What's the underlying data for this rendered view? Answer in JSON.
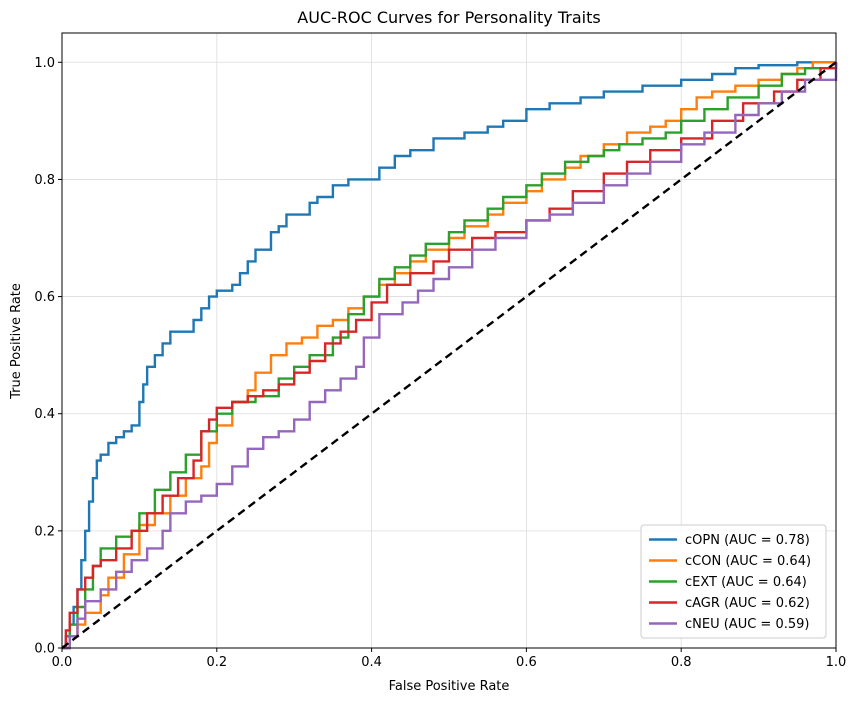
{
  "chart_data": {
    "type": "line",
    "title": "AUC-ROC Curves for Personality Traits",
    "xlabel": "False Positive Rate",
    "ylabel": "True Positive Rate",
    "xlim": [
      0.0,
      1.0
    ],
    "ylim": [
      0.0,
      1.05
    ],
    "xticks": [
      "0.0",
      "0.2",
      "0.4",
      "0.6",
      "0.8",
      "1.0"
    ],
    "yticks": [
      "0.0",
      "0.2",
      "0.4",
      "0.6",
      "0.8",
      "1.0"
    ],
    "grid": true,
    "legend_position": "lower right",
    "diagonal": {
      "x": [
        0,
        1
      ],
      "y": [
        0,
        1
      ],
      "style": "dashed",
      "color": "#000000"
    },
    "series": [
      {
        "name": "cOPN (AUC = 0.78)",
        "color": "#1f77b4",
        "x": [
          0,
          0.005,
          0.01,
          0.015,
          0.02,
          0.025,
          0.03,
          0.035,
          0.04,
          0.045,
          0.05,
          0.06,
          0.07,
          0.08,
          0.09,
          0.1,
          0.105,
          0.11,
          0.12,
          0.13,
          0.14,
          0.15,
          0.17,
          0.18,
          0.19,
          0.2,
          0.22,
          0.23,
          0.24,
          0.25,
          0.27,
          0.28,
          0.29,
          0.3,
          0.32,
          0.33,
          0.35,
          0.37,
          0.4,
          0.41,
          0.43,
          0.45,
          0.48,
          0.5,
          0.52,
          0.55,
          0.57,
          0.6,
          0.63,
          0.67,
          0.7,
          0.75,
          0.8,
          0.84,
          0.87,
          0.9,
          0.95,
          1.0
        ],
        "y": [
          0,
          0.02,
          0.04,
          0.07,
          0.1,
          0.15,
          0.2,
          0.25,
          0.29,
          0.32,
          0.33,
          0.35,
          0.36,
          0.37,
          0.38,
          0.42,
          0.45,
          0.48,
          0.5,
          0.52,
          0.54,
          0.54,
          0.56,
          0.58,
          0.6,
          0.61,
          0.62,
          0.64,
          0.66,
          0.68,
          0.71,
          0.72,
          0.74,
          0.74,
          0.76,
          0.77,
          0.79,
          0.8,
          0.8,
          0.82,
          0.84,
          0.85,
          0.87,
          0.87,
          0.88,
          0.89,
          0.9,
          0.92,
          0.93,
          0.94,
          0.95,
          0.96,
          0.97,
          0.98,
          0.99,
          0.995,
          1.0,
          1.0
        ]
      },
      {
        "name": "cCON (AUC = 0.64)",
        "color": "#ff7f0e",
        "x": [
          0,
          0.01,
          0.02,
          0.03,
          0.05,
          0.06,
          0.08,
          0.1,
          0.12,
          0.14,
          0.16,
          0.18,
          0.19,
          0.2,
          0.22,
          0.24,
          0.25,
          0.27,
          0.29,
          0.31,
          0.33,
          0.35,
          0.37,
          0.39,
          0.41,
          0.43,
          0.45,
          0.47,
          0.5,
          0.52,
          0.55,
          0.57,
          0.6,
          0.62,
          0.65,
          0.67,
          0.7,
          0.73,
          0.76,
          0.78,
          0.8,
          0.82,
          0.84,
          0.87,
          0.9,
          0.93,
          0.95,
          0.97,
          1.0
        ],
        "y": [
          0,
          0.02,
          0.04,
          0.06,
          0.09,
          0.12,
          0.16,
          0.21,
          0.23,
          0.26,
          0.29,
          0.31,
          0.35,
          0.38,
          0.42,
          0.44,
          0.47,
          0.5,
          0.52,
          0.53,
          0.55,
          0.56,
          0.58,
          0.6,
          0.62,
          0.64,
          0.66,
          0.68,
          0.7,
          0.72,
          0.74,
          0.76,
          0.78,
          0.8,
          0.82,
          0.84,
          0.86,
          0.88,
          0.89,
          0.9,
          0.92,
          0.94,
          0.95,
          0.96,
          0.97,
          0.98,
          0.99,
          1.0,
          1.0
        ]
      },
      {
        "name": "cEXT (AUC = 0.64)",
        "color": "#2ca02c",
        "x": [
          0,
          0.01,
          0.02,
          0.03,
          0.04,
          0.05,
          0.07,
          0.09,
          0.1,
          0.12,
          0.14,
          0.16,
          0.18,
          0.2,
          0.22,
          0.25,
          0.28,
          0.3,
          0.32,
          0.35,
          0.37,
          0.39,
          0.41,
          0.43,
          0.45,
          0.47,
          0.5,
          0.52,
          0.55,
          0.57,
          0.6,
          0.62,
          0.65,
          0.68,
          0.7,
          0.72,
          0.75,
          0.78,
          0.8,
          0.83,
          0.86,
          0.9,
          0.93,
          0.96,
          1.0
        ],
        "y": [
          0,
          0.04,
          0.07,
          0.1,
          0.14,
          0.17,
          0.19,
          0.2,
          0.23,
          0.27,
          0.3,
          0.33,
          0.37,
          0.4,
          0.42,
          0.43,
          0.46,
          0.48,
          0.5,
          0.53,
          0.57,
          0.6,
          0.63,
          0.65,
          0.67,
          0.69,
          0.71,
          0.73,
          0.75,
          0.77,
          0.79,
          0.81,
          0.83,
          0.84,
          0.85,
          0.86,
          0.87,
          0.88,
          0.9,
          0.92,
          0.94,
          0.96,
          0.98,
          0.99,
          1.0
        ]
      },
      {
        "name": "cAGR (AUC = 0.62)",
        "color": "#d62728",
        "x": [
          0,
          0.005,
          0.01,
          0.02,
          0.03,
          0.04,
          0.05,
          0.07,
          0.09,
          0.11,
          0.13,
          0.15,
          0.17,
          0.18,
          0.19,
          0.2,
          0.22,
          0.24,
          0.26,
          0.28,
          0.3,
          0.32,
          0.34,
          0.36,
          0.38,
          0.4,
          0.42,
          0.45,
          0.48,
          0.5,
          0.53,
          0.56,
          0.6,
          0.63,
          0.66,
          0.7,
          0.73,
          0.76,
          0.8,
          0.84,
          0.88,
          0.92,
          0.95,
          0.98,
          1.0
        ],
        "y": [
          0,
          0.03,
          0.06,
          0.1,
          0.12,
          0.14,
          0.15,
          0.17,
          0.2,
          0.23,
          0.26,
          0.29,
          0.32,
          0.37,
          0.39,
          0.41,
          0.42,
          0.43,
          0.44,
          0.45,
          0.47,
          0.49,
          0.52,
          0.54,
          0.56,
          0.59,
          0.62,
          0.64,
          0.66,
          0.68,
          0.7,
          0.71,
          0.73,
          0.75,
          0.78,
          0.81,
          0.83,
          0.85,
          0.87,
          0.9,
          0.93,
          0.95,
          0.97,
          0.99,
          1.0
        ]
      },
      {
        "name": "cNEU (AUC = 0.59)",
        "color": "#9467bd",
        "x": [
          0,
          0.01,
          0.02,
          0.03,
          0.05,
          0.07,
          0.09,
          0.11,
          0.13,
          0.14,
          0.16,
          0.18,
          0.2,
          0.22,
          0.24,
          0.26,
          0.28,
          0.3,
          0.32,
          0.34,
          0.36,
          0.38,
          0.39,
          0.41,
          0.44,
          0.46,
          0.48,
          0.5,
          0.53,
          0.56,
          0.6,
          0.63,
          0.66,
          0.7,
          0.73,
          0.76,
          0.8,
          0.83,
          0.87,
          0.9,
          0.93,
          0.96,
          1.0
        ],
        "y": [
          0,
          0.02,
          0.05,
          0.08,
          0.1,
          0.13,
          0.15,
          0.17,
          0.2,
          0.23,
          0.25,
          0.26,
          0.28,
          0.31,
          0.34,
          0.36,
          0.37,
          0.39,
          0.42,
          0.44,
          0.46,
          0.48,
          0.53,
          0.57,
          0.59,
          0.61,
          0.63,
          0.65,
          0.68,
          0.7,
          0.73,
          0.74,
          0.76,
          0.79,
          0.81,
          0.83,
          0.86,
          0.88,
          0.91,
          0.93,
          0.95,
          0.97,
          1.0
        ]
      }
    ]
  }
}
